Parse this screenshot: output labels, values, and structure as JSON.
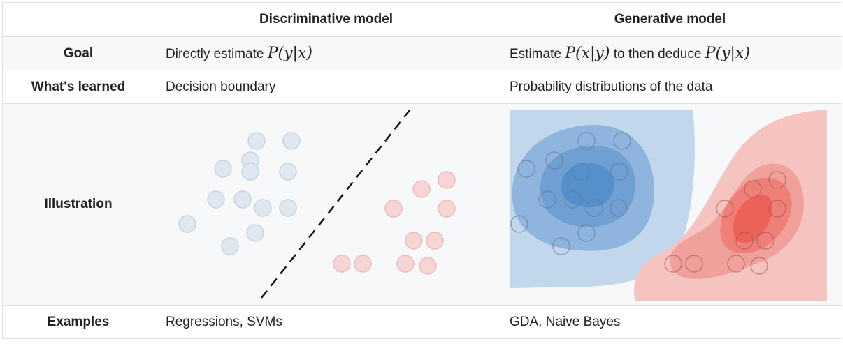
{
  "header": {
    "col1": "",
    "col2": "Discriminative model",
    "col3": "Generative model"
  },
  "rows": {
    "goal": {
      "label": "Goal",
      "disc_prefix": "Directly estimate ",
      "disc_math": "P(y|x)",
      "gen_prefix": "Estimate ",
      "gen_math1": "P(x|y)",
      "gen_middle": " to then deduce ",
      "gen_math2": "P(y|x)"
    },
    "learned": {
      "label": "What's learned",
      "disc": "Decision boundary",
      "gen": "Probability distributions of the data"
    },
    "illustration": {
      "label": "Illustration"
    },
    "examples": {
      "label": "Examples",
      "disc": "Regressions, SVMs",
      "gen": "GDA, Naive Bayes"
    }
  },
  "colors": {
    "blue_point": "#dfe7f0",
    "red_point": "#f8d5d5",
    "blue_density": "#4a86c5",
    "red_density": "#ef5a50",
    "border": "#dfe2e5",
    "alt_row": "#f6f8fa"
  }
}
